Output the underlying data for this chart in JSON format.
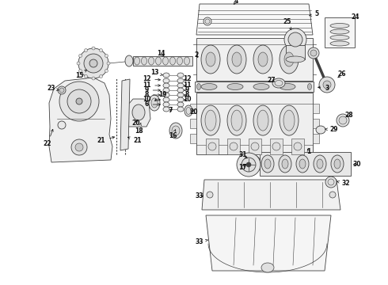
{
  "bg_color": "#ffffff",
  "line_color": "#404040",
  "label_color": "#111111",
  "label_fontsize": 5.5,
  "fig_width": 4.9,
  "fig_height": 3.6,
  "dpi": 100
}
